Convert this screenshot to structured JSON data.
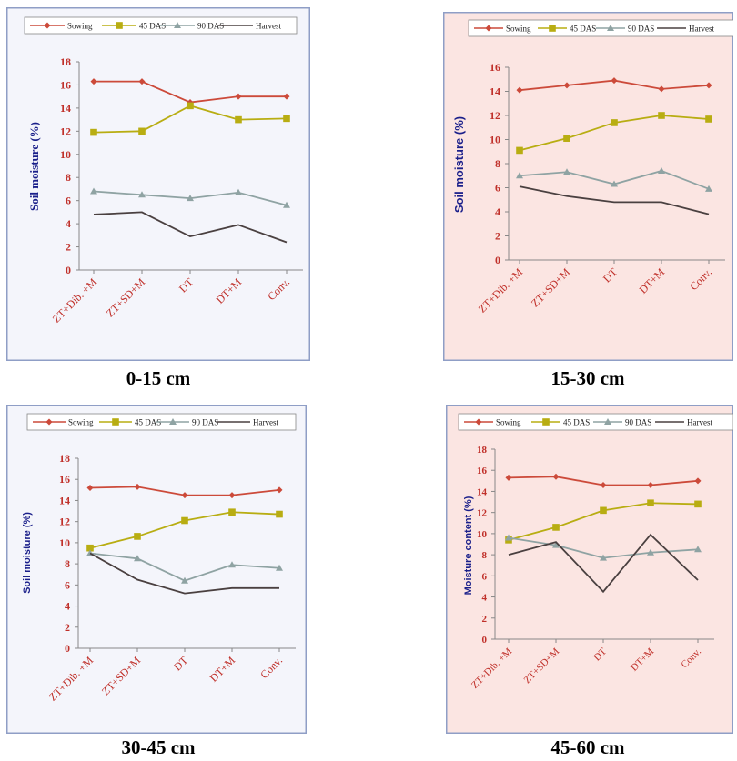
{
  "colors": {
    "Sowing": "#cc4a3a",
    "45 DAS": "#b8ad12",
    "90 DAS": "#8fa3a3",
    "Harvest": "#4a4040",
    "tick_label": "#c0302a",
    "axis_title": "#1a1f8a",
    "panel_border": "#8f9ec6",
    "panel_bg": [
      "#f4f5fb",
      "#fbe5e2",
      "#f4f5fb",
      "#fbe5e2"
    ]
  },
  "chart_data": [
    {
      "type": "line",
      "caption": "0-15 cm",
      "ylabel": "Soil moisture (%)",
      "ylim": [
        0,
        18
      ],
      "yticks": [
        "0",
        "2",
        "4",
        "6",
        "8",
        "10",
        "12",
        "14",
        "16",
        "18"
      ],
      "categories": [
        "ZT+Dib. +M",
        "ZT+SD+M",
        "DT",
        "DT+M",
        "Conv."
      ],
      "legend_position": "top",
      "grid": false,
      "series": [
        {
          "name": "Sowing",
          "values": [
            16.3,
            16.3,
            14.5,
            15.0,
            15.0
          ]
        },
        {
          "name": "45 DAS",
          "values": [
            11.9,
            12.0,
            14.2,
            13.0,
            13.1
          ]
        },
        {
          "name": "90 DAS",
          "values": [
            6.8,
            6.5,
            6.2,
            6.7,
            5.6
          ]
        },
        {
          "name": "Harvest",
          "values": [
            4.8,
            5.0,
            2.9,
            3.9,
            2.4
          ]
        }
      ]
    },
    {
      "type": "line",
      "caption": "15-30 cm",
      "ylabel": "Soil moisture (%)",
      "ylim": [
        0,
        16
      ],
      "yticks": [
        "0",
        "2",
        "4",
        "6",
        "8",
        "10",
        "12",
        "14",
        "16"
      ],
      "categories": [
        "ZT+Dib. +M",
        "ZT+SD+M",
        "DT",
        "DT+M",
        "Conv."
      ],
      "legend_position": "top",
      "grid": false,
      "series": [
        {
          "name": "Sowing",
          "values": [
            14.1,
            14.5,
            14.9,
            14.2,
            14.5
          ]
        },
        {
          "name": "45 DAS",
          "values": [
            9.1,
            10.1,
            11.4,
            12.0,
            11.7
          ]
        },
        {
          "name": "90 DAS",
          "values": [
            7.0,
            7.3,
            6.3,
            7.4,
            5.9
          ]
        },
        {
          "name": "Harvest",
          "values": [
            6.1,
            5.3,
            4.8,
            4.8,
            3.8
          ]
        }
      ]
    },
    {
      "type": "line",
      "caption": "30-45 cm",
      "ylabel": "Soil moisture (%)",
      "ylim": [
        0,
        18
      ],
      "yticks": [
        "0",
        "2",
        "4",
        "6",
        "8",
        "10",
        "12",
        "14",
        "16",
        "18"
      ],
      "categories": [
        "ZT+Dib. +M",
        "ZT+SD+M",
        "DT",
        "DT+M",
        "Conv."
      ],
      "legend_position": "top",
      "grid": false,
      "series": [
        {
          "name": "Sowing",
          "values": [
            15.2,
            15.3,
            14.5,
            14.5,
            15.0
          ]
        },
        {
          "name": "45 DAS",
          "values": [
            9.5,
            10.6,
            12.1,
            12.9,
            12.7
          ]
        },
        {
          "name": "90 DAS",
          "values": [
            9.0,
            8.5,
            6.4,
            7.9,
            7.6
          ]
        },
        {
          "name": "Harvest",
          "values": [
            9.0,
            6.5,
            5.2,
            5.7,
            5.7
          ]
        }
      ]
    },
    {
      "type": "line",
      "caption": "45-60 cm",
      "ylabel": "Moisture content (%)",
      "ylim": [
        0,
        18
      ],
      "yticks": [
        "0",
        "2",
        "4",
        "6",
        "8",
        "10",
        "12",
        "14",
        "16",
        "18"
      ],
      "categories": [
        "ZT+Dib. +M",
        "ZT+SD+M",
        "DT",
        "DT+M",
        "Conv."
      ],
      "legend_position": "top",
      "grid": false,
      "series": [
        {
          "name": "Sowing",
          "values": [
            15.3,
            15.4,
            14.6,
            14.6,
            15.0
          ]
        },
        {
          "name": "45 DAS",
          "values": [
            9.4,
            10.6,
            12.2,
            12.9,
            12.8
          ]
        },
        {
          "name": "90 DAS",
          "values": [
            9.6,
            8.9,
            7.7,
            8.2,
            8.5
          ]
        },
        {
          "name": "Harvest",
          "values": [
            8.0,
            9.2,
            4.5,
            9.9,
            5.6
          ]
        }
      ]
    }
  ]
}
